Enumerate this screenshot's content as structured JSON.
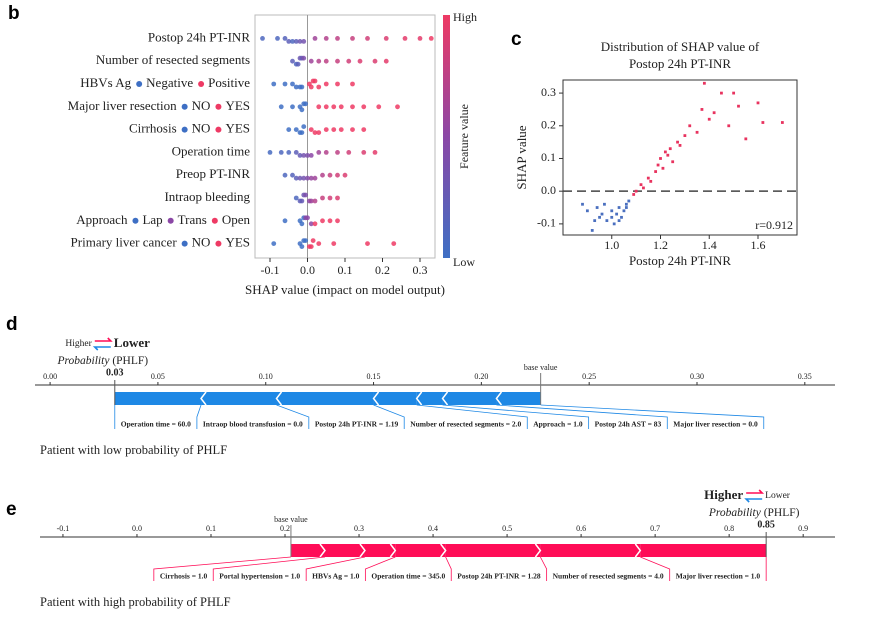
{
  "chart_data": [
    {
      "type": "beeswarm",
      "panel": "b",
      "xlabel": "SHAP value (impact on model output)",
      "xlim": [
        -0.14,
        0.34
      ],
      "xticks": [
        -0.1,
        {
          "value": 0,
          "label": "0.0"
        },
        0.1,
        0.2,
        0.3
      ],
      "vline": 0,
      "colormap": [
        "#3e6fc4",
        "#8b47a6",
        "#ee3a64"
      ],
      "colorbar": {
        "high": "High",
        "low": "Low",
        "label": "Feature value"
      },
      "features": [
        {
          "name": "Postop 24h PT-INR",
          "levels": [],
          "values": [
            -0.12,
            -0.08,
            -0.06,
            -0.05,
            -0.04,
            -0.03,
            -0.02,
            -0.01,
            0.02,
            0.05,
            0.08,
            0.12,
            0.16,
            0.21,
            0.26,
            0.3,
            0.33
          ],
          "feature_values": [
            0.1,
            0.1,
            0.15,
            0.2,
            0.1,
            0.2,
            0.3,
            0.35,
            0.6,
            0.7,
            0.75,
            0.8,
            0.85,
            0.9,
            0.95,
            0.95,
            1
          ]
        },
        {
          "name": "Number of resected segments",
          "levels": [],
          "values": [
            -0.04,
            -0.03,
            -0.025,
            -0.02,
            -0.015,
            -0.01,
            0.01,
            0.03,
            0.05,
            0.08,
            0.11,
            0.14,
            0.18,
            0.21
          ],
          "feature_values": [
            0.2,
            0.1,
            0.2,
            0.3,
            0.25,
            0.4,
            0.6,
            0.7,
            0.75,
            0.8,
            0.85,
            0.9,
            0.9,
            0.95
          ]
        },
        {
          "name": "HBVs Ag",
          "levels": [
            {
              "name": "Negative",
              "color": "#3e6fc4"
            },
            {
              "name": "Positive",
              "color": "#ee3a64"
            }
          ],
          "values": [
            -0.09,
            -0.06,
            -0.04,
            -0.03,
            -0.02,
            -0.015,
            0.005,
            0.01,
            0.015,
            0.02,
            0.03,
            0.05,
            0.08,
            0.12
          ],
          "feature_values": [
            0,
            0,
            0,
            0,
            0,
            0,
            1,
            1,
            1,
            1,
            1,
            1,
            1,
            1
          ]
        },
        {
          "name": "Major liver resection",
          "levels": [
            {
              "name": "NO",
              "color": "#3e6fc4"
            },
            {
              "name": "YES",
              "color": "#ee3a64"
            }
          ],
          "values": [
            -0.07,
            -0.04,
            -0.02,
            -0.015,
            -0.01,
            -0.005,
            0.03,
            0.05,
            0.07,
            0.09,
            0.12,
            0.15,
            0.19,
            0.24
          ],
          "feature_values": [
            0,
            0,
            0,
            0,
            0,
            0,
            1,
            1,
            1,
            1,
            1,
            1,
            1,
            1
          ]
        },
        {
          "name": "Cirrhosis",
          "levels": [
            {
              "name": "NO",
              "color": "#3e6fc4"
            },
            {
              "name": "YES",
              "color": "#ee3a64"
            }
          ],
          "values": [
            -0.05,
            -0.03,
            -0.02,
            -0.015,
            -0.01,
            0.01,
            0.02,
            0.03,
            0.05,
            0.07,
            0.09,
            0.12,
            0.15
          ],
          "feature_values": [
            0,
            0,
            0,
            0,
            0,
            1,
            1,
            1,
            1,
            1,
            1,
            1,
            1
          ]
        },
        {
          "name": "Operation time",
          "levels": [],
          "values": [
            -0.1,
            -0.07,
            -0.05,
            -0.03,
            -0.02,
            -0.01,
            0.0,
            0.01,
            0.03,
            0.05,
            0.08,
            0.11,
            0.15,
            0.18
          ],
          "feature_values": [
            0.05,
            0.1,
            0.1,
            0.2,
            0.25,
            0.35,
            0.4,
            0.5,
            0.6,
            0.7,
            0.75,
            0.85,
            0.9,
            0.95
          ]
        },
        {
          "name": "Preop PT-INR",
          "levels": [],
          "values": [
            -0.06,
            -0.04,
            -0.03,
            -0.02,
            -0.01,
            0.0,
            0.01,
            0.02,
            0.04,
            0.06,
            0.08,
            0.1
          ],
          "feature_values": [
            0.1,
            0.15,
            0.2,
            0.3,
            0.35,
            0.45,
            0.55,
            0.6,
            0.7,
            0.8,
            0.85,
            0.9
          ]
        },
        {
          "name": "Intraop bleeding",
          "levels": [],
          "values": [
            -0.03,
            -0.02,
            -0.015,
            -0.01,
            -0.005,
            0.005,
            0.01,
            0.02,
            0.04,
            0.06,
            0.08
          ],
          "feature_values": [
            0.1,
            0.2,
            0.25,
            0.3,
            0.4,
            0.5,
            0.6,
            0.7,
            0.8,
            0.85,
            0.9
          ]
        },
        {
          "name": "Approach",
          "levels": [
            {
              "name": "Lap",
              "color": "#3e6fc4"
            },
            {
              "name": "Trans",
              "color": "#8b47a6"
            },
            {
              "name": "Open",
              "color": "#ee3a64"
            }
          ],
          "values": [
            -0.06,
            -0.02,
            -0.015,
            -0.01,
            -0.005,
            0.0,
            0.01,
            0.02,
            0.04,
            0.06,
            0.08
          ],
          "feature_values": [
            0,
            0,
            0,
            0,
            0.5,
            0.5,
            0.5,
            1,
            1,
            1,
            1
          ]
        },
        {
          "name": "Primary liver cancer",
          "levels": [
            {
              "name": "NO",
              "color": "#3e6fc4"
            },
            {
              "name": "YES",
              "color": "#ee3a64"
            }
          ],
          "values": [
            -0.09,
            -0.02,
            -0.015,
            -0.01,
            -0.005,
            0.005,
            0.01,
            0.015,
            0.03,
            0.07,
            0.16,
            0.23
          ],
          "feature_values": [
            0,
            0,
            0,
            0,
            0,
            1,
            1,
            1,
            1,
            1,
            1,
            1
          ]
        }
      ]
    },
    {
      "type": "scatter",
      "panel": "c",
      "title": [
        "Distribution of SHAP value of",
        "Postop 24h PT-INR"
      ],
      "xlabel": "Postop 24h PT-INR",
      "ylabel": "SHAP value",
      "annotation": "r=0.912",
      "xlim": [
        0.8,
        1.76
      ],
      "xticks": [
        {
          "value": 1,
          "label": "1.0"
        },
        1.2,
        1.4,
        1.6
      ],
      "ylim": [
        -0.134,
        0.34
      ],
      "yticks": [
        -0.1,
        {
          "value": 0,
          "label": "0.0"
        },
        0.1,
        0.2,
        0.3
      ],
      "hline": 0,
      "series": [
        {
          "color": "#4a6fbf",
          "x": [
            0.88,
            0.9,
            0.92,
            0.94,
            0.95,
            0.96,
            0.98,
            1.0,
            1.01,
            1.02,
            1.03,
            1.04,
            1.05,
            1.06,
            1.07,
            0.93,
            0.97,
            1.0,
            1.03,
            1.06
          ],
          "y": [
            -0.04,
            -0.06,
            -0.12,
            -0.05,
            -0.08,
            -0.07,
            -0.09,
            -0.06,
            -0.1,
            -0.07,
            -0.05,
            -0.08,
            -0.06,
            -0.04,
            -0.03,
            -0.09,
            -0.04,
            -0.08,
            -0.09,
            -0.05
          ]
        },
        {
          "color": "#e8335f",
          "x": [
            1.09,
            1.1,
            1.12,
            1.13,
            1.15,
            1.16,
            1.18,
            1.19,
            1.2,
            1.21,
            1.22,
            1.23,
            1.24,
            1.25,
            1.27,
            1.28,
            1.3,
            1.32,
            1.35,
            1.37,
            1.4,
            1.42,
            1.45,
            1.48,
            1.5,
            1.55,
            1.6,
            1.62,
            1.7,
            1.38,
            1.52
          ],
          "y": [
            -0.01,
            0.0,
            0.02,
            0.01,
            0.04,
            0.03,
            0.06,
            0.08,
            0.1,
            0.07,
            0.12,
            0.11,
            0.13,
            0.09,
            0.15,
            0.14,
            0.17,
            0.2,
            0.18,
            0.25,
            0.22,
            0.24,
            0.3,
            0.2,
            0.3,
            0.16,
            0.27,
            0.21,
            0.21,
            0.33,
            0.26
          ]
        }
      ]
    },
    {
      "type": "force",
      "panel": "d",
      "higher_label": "Higher",
      "lower_label": "Lower",
      "emphasis": "lower",
      "probability_label": "Probability",
      "probability_suffix": "(PHLF)",
      "base_label": "base value",
      "base_value": 0.2275,
      "output_value": 0.03,
      "higher_color": "#ff0d57",
      "lower_color": "#1e88e5",
      "xlim": [
        -0.007,
        0.364
      ],
      "xticks": [
        {
          "value": 0,
          "label": "0.00"
        },
        0.05,
        {
          "value": 0.1,
          "label": "0.10"
        },
        0.15,
        {
          "value": 0.2,
          "label": "0.20"
        },
        0.25,
        {
          "value": 0.3,
          "label": "0.30"
        },
        0.35
      ],
      "features": [
        {
          "label": "Operation time = 60.0",
          "value": -0.04
        },
        {
          "label": "Intraop blood transfusion = 0.0",
          "value": -0.035
        },
        {
          "label": "Postop 24h PT-INR = 1.19",
          "value": -0.045
        },
        {
          "label": "Number of resected segments = 2.0",
          "value": -0.02
        },
        {
          "label": "Approach = 1.0",
          "value": -0.012
        },
        {
          "label": "Postop 24h AST = 83",
          "value": -0.025
        },
        {
          "label": "Major liver resection = 0.0",
          "value": -0.0205
        }
      ],
      "caption": "Patient with low probability of PHLF"
    },
    {
      "type": "force",
      "panel": "e",
      "higher_label": "Higher",
      "lower_label": "Lower",
      "emphasis": "higher",
      "probability_label": "Probability",
      "probability_suffix": "(PHLF)",
      "base_label": "base value",
      "base_value": 0.208,
      "output_value": 0.85,
      "higher_color": "#ff0d57",
      "lower_color": "#1e88e5",
      "xlim": [
        -0.131,
        0.943
      ],
      "xticks": [
        -0.1,
        {
          "value": 0,
          "label": "0.0"
        },
        0.1,
        0.2,
        0.3,
        0.4,
        0.5,
        0.6,
        0.7,
        0.8,
        0.9
      ],
      "features": [
        {
          "label": "Cirrhosis = 1.0",
          "value": 0.046
        },
        {
          "label": "Portal hypertension = 1.0",
          "value": 0.054
        },
        {
          "label": "HBVs Ag = 1.0",
          "value": 0.041
        },
        {
          "label": "Operation time = 345.0",
          "value": 0.068
        },
        {
          "label": "Postop 24h PT-INR = 1.28",
          "value": 0.128
        },
        {
          "label": "Number of resected segments = 4.0",
          "value": 0.135
        },
        {
          "label": "Major liver resection = 1.0",
          "value": 0.17
        }
      ],
      "caption": "Patient with high probability of PHLF"
    }
  ]
}
